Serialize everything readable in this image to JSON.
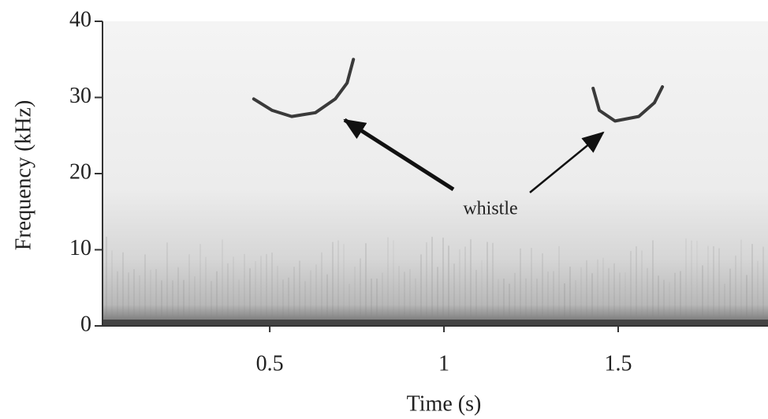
{
  "chart_data": {
    "type": "spectrogram",
    "xlabel": "Time (s)",
    "ylabel": "Frequency (kHz)",
    "annotation": "whistle",
    "xlim": [
      0.02,
      1.93
    ],
    "ylim": [
      0,
      40
    ],
    "xticks": [
      0.5,
      1,
      1.5
    ],
    "yticks": [
      0,
      10,
      20,
      30,
      40
    ],
    "color": "#3a3a3a",
    "contours": [
      {
        "x": [
          0.454,
          0.507,
          0.563,
          0.631,
          0.688,
          0.722,
          0.74
        ],
        "values": [
          29.8,
          28.3,
          27.5,
          28.0,
          29.8,
          31.9,
          35.0
        ]
      },
      {
        "x": [
          1.428,
          1.446,
          1.491,
          1.559,
          1.604,
          1.627
        ],
        "values": [
          31.2,
          28.3,
          26.9,
          27.5,
          29.3,
          31.4
        ]
      }
    ]
  }
}
